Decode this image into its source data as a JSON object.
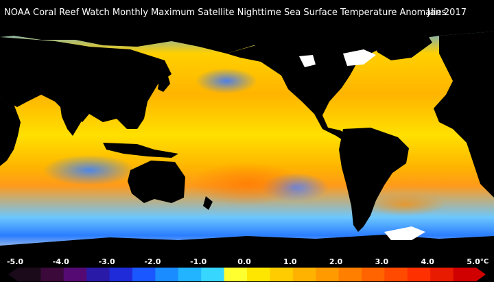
{
  "title": "NOAA Coral Reef Watch Monthly Maximum Satellite Nighttime Sea Surface Temperature Anomalies",
  "date": "Jan 2017",
  "colorbar": {
    "unit": "°C",
    "ticks": [
      "-5.0",
      "-4.0",
      "-3.0",
      "-2.0",
      "-1.0",
      "0.0",
      "1.0",
      "2.0",
      "3.0",
      "4.0",
      "5.0"
    ],
    "colors": [
      "#1a0a1a",
      "#3b0a3b",
      "#550a73",
      "#2a1aa8",
      "#1f2bd8",
      "#1a57ff",
      "#1a8cff",
      "#22b4ff",
      "#36d6ff",
      "#ffff30",
      "#ffe600",
      "#ffcc00",
      "#ffb300",
      "#ff9a00",
      "#ff7f00",
      "#ff6400",
      "#ff4a00",
      "#ff3000",
      "#e81a00",
      "#d00000"
    ]
  },
  "legend_colors": {
    "land": "#000000",
    "ice": "#ffffff"
  }
}
